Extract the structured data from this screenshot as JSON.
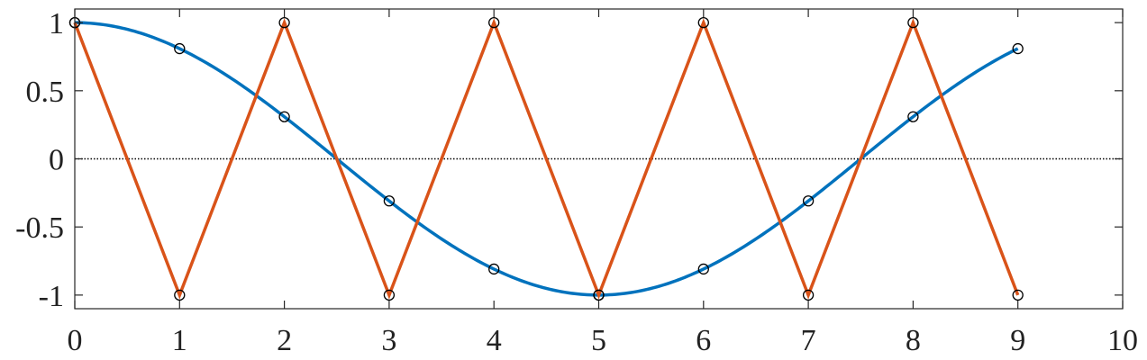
{
  "chart_data": {
    "type": "line",
    "title": "",
    "xlabel": "",
    "ylabel": "",
    "xlim": [
      0,
      10
    ],
    "ylim": [
      -1.1,
      1.1
    ],
    "grid": false,
    "box": true,
    "zero_line": {
      "y": 0,
      "style": "dotted",
      "color": "#000000"
    },
    "x_ticks": [
      0,
      1,
      2,
      3,
      4,
      5,
      6,
      7,
      8,
      9,
      10
    ],
    "x_tick_labels": [
      "0",
      "1",
      "2",
      "3",
      "4",
      "5",
      "6",
      "7",
      "8",
      "9",
      "10"
    ],
    "y_ticks": [
      1,
      0.5,
      0,
      -0.5,
      -1
    ],
    "y_tick_labels": [
      "1",
      "0.5",
      "0",
      "-0.5",
      "-1"
    ],
    "series": [
      {
        "kind": "smooth-curve",
        "color": "#0072BD",
        "function": "cos(pi*x/5)",
        "x_range": [
          0,
          9
        ],
        "samples": [
          {
            "x": 0,
            "y": 1
          },
          {
            "x": 1,
            "y": 0.809
          },
          {
            "x": 2,
            "y": 0.309
          },
          {
            "x": 3,
            "y": -0.309
          },
          {
            "x": 4,
            "y": -0.809
          },
          {
            "x": 5,
            "y": -1
          },
          {
            "x": 6,
            "y": -0.809
          },
          {
            "x": 7,
            "y": -0.309
          },
          {
            "x": 8,
            "y": 0.309
          },
          {
            "x": 9,
            "y": 0.809
          }
        ]
      },
      {
        "kind": "polyline",
        "color": "#D95319",
        "points": [
          {
            "x": 0,
            "y": 1
          },
          {
            "x": 1,
            "y": -1
          },
          {
            "x": 2,
            "y": 1
          },
          {
            "x": 3,
            "y": -1
          },
          {
            "x": 4,
            "y": 1
          },
          {
            "x": 5,
            "y": -1
          },
          {
            "x": 6,
            "y": 1
          },
          {
            "x": 7,
            "y": -1
          },
          {
            "x": 8,
            "y": 1
          },
          {
            "x": 9,
            "y": -1
          }
        ]
      }
    ],
    "marker_style": "open-circle",
    "marker_color": "#000000"
  }
}
